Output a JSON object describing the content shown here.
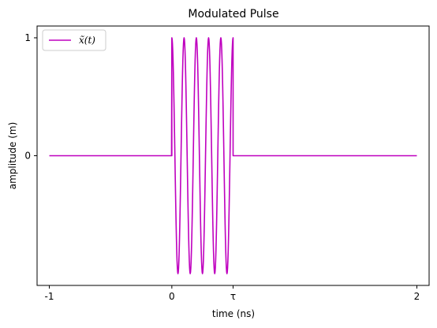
{
  "chart_data": {
    "type": "line",
    "title": "Modulated Pulse",
    "xlabel": "time (ns)",
    "ylabel": "amplitude (m)",
    "xlim": [
      -1.1,
      2.1
    ],
    "ylim": [
      -1.1,
      1.1
    ],
    "grid": false,
    "legend_position": "top-left",
    "x_ticks": [
      {
        "value": -1,
        "label": "-1"
      },
      {
        "value": 0,
        "label": "0"
      },
      {
        "value": 0.5,
        "label": "τ"
      },
      {
        "value": 2,
        "label": "2"
      }
    ],
    "y_ticks": [
      {
        "value": 1,
        "label": "1"
      },
      {
        "value": 0,
        "label": "0"
      }
    ],
    "series": [
      {
        "name": "x̃(t)",
        "color": "#bf00bf",
        "function": "cos(2*pi*10*t) for 0 <= t <= 0.5, otherwise 0",
        "x_range": [
          -1,
          2
        ],
        "pulse_start": 0,
        "pulse_end": 0.5,
        "carrier_frequency": 10,
        "peak_amplitude": 1
      }
    ]
  }
}
